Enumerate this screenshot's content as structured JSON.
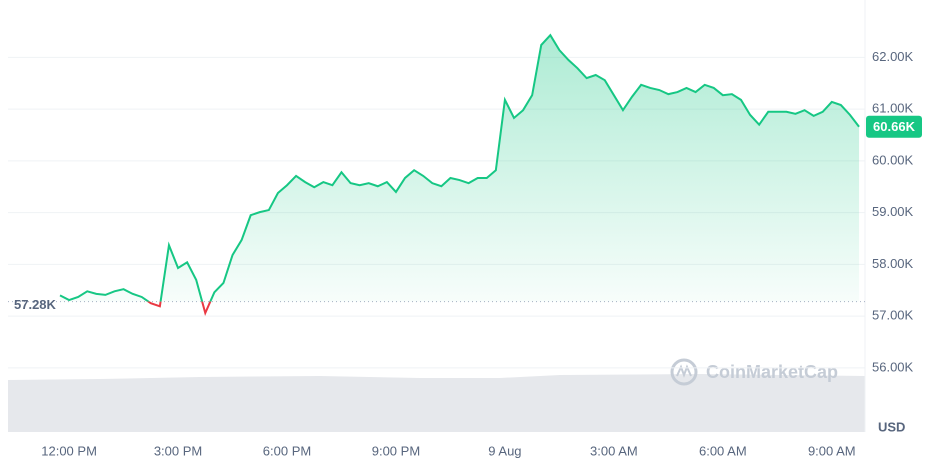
{
  "chart_data": {
    "type": "line",
    "categories": [
      null,
      "12:00 PM",
      null,
      null,
      null,
      null,
      null,
      null,
      null,
      null,
      null,
      null,
      null,
      "3:00 PM",
      null,
      null,
      null,
      null,
      null,
      null,
      null,
      null,
      null,
      null,
      null,
      "6:00 PM",
      null,
      null,
      null,
      null,
      null,
      null,
      null,
      null,
      null,
      null,
      null,
      "9:00 PM",
      null,
      null,
      null,
      null,
      null,
      null,
      null,
      null,
      null,
      null,
      null,
      "9 Aug",
      null,
      null,
      null,
      null,
      null,
      null,
      null,
      null,
      null,
      null,
      null,
      "3:00 AM",
      null,
      null,
      null,
      null,
      null,
      null,
      null,
      null,
      null,
      null,
      null,
      "6:00 AM",
      null,
      null,
      null,
      null,
      null,
      null,
      null,
      null,
      null,
      null,
      null,
      "9:00 AM",
      null,
      null,
      null
    ],
    "series": [
      {
        "name": "Price",
        "color": "#16c784",
        "values": [
          57.4,
          57.31,
          57.37,
          57.48,
          57.43,
          57.41,
          57.48,
          57.52,
          57.43,
          57.37,
          57.25,
          57.19,
          58.37,
          57.93,
          58.04,
          57.7,
          57.06,
          57.46,
          57.64,
          58.18,
          58.47,
          58.95,
          59.01,
          59.05,
          59.38,
          59.53,
          59.71,
          59.59,
          59.49,
          59.59,
          59.53,
          59.78,
          59.57,
          59.53,
          59.57,
          59.51,
          59.59,
          59.4,
          59.67,
          59.82,
          59.71,
          59.57,
          59.51,
          59.67,
          59.63,
          59.57,
          59.67,
          59.67,
          59.82,
          61.18,
          60.83,
          60.98,
          61.27,
          62.24,
          62.43,
          62.14,
          61.95,
          61.79,
          61.6,
          61.66,
          61.56,
          61.27,
          60.98,
          61.24,
          61.47,
          61.41,
          61.37,
          61.29,
          61.33,
          61.41,
          61.33,
          61.47,
          61.41,
          61.27,
          61.29,
          61.18,
          60.89,
          60.7,
          60.95,
          60.95,
          60.95,
          60.91,
          60.98,
          60.87,
          60.95,
          61.14,
          61.08,
          60.89,
          60.66
        ]
      }
    ],
    "below_color": "#ea3943",
    "ylim": [
      54.76,
      63.11
    ],
    "yticks": [
      {
        "value": 56,
        "label": "56.00K"
      },
      {
        "value": 57,
        "label": "57.00K"
      },
      {
        "value": 58,
        "label": "58.00K"
      },
      {
        "value": 59,
        "label": "59.00K"
      },
      {
        "value": 60,
        "label": "60.00K"
      },
      {
        "value": 61,
        "label": "61.00K"
      },
      {
        "value": 62,
        "label": "62.00K"
      }
    ],
    "reference": {
      "value": 57.28,
      "label": "57.28K"
    },
    "current": {
      "value": 60.66,
      "label": "60.66K"
    },
    "currency": "USD",
    "watermark": "CoinMarketCap",
    "grid": true
  }
}
